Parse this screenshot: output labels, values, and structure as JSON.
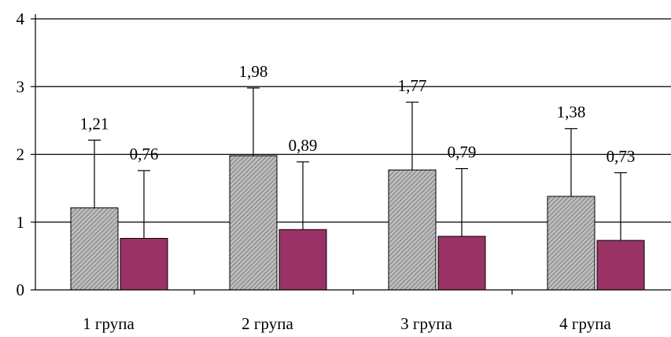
{
  "chart_data": {
    "type": "bar",
    "categories": [
      "1 група",
      "2 група",
      "3 група",
      "4 група"
    ],
    "series": [
      {
        "values": [
          1.21,
          1.98,
          1.77,
          1.38
        ],
        "value_labels": [
          "1,21",
          "1,98",
          "1,77",
          "1,38"
        ],
        "error_plus": [
          1.0,
          1.0,
          1.0,
          1.0
        ],
        "fill": "hatched-gray"
      },
      {
        "values": [
          0.76,
          0.89,
          0.79,
          0.73
        ],
        "value_labels": [
          "0,76",
          "0,89",
          "0,79",
          "0,73"
        ],
        "error_plus": [
          1.0,
          1.0,
          1.0,
          1.0
        ],
        "color": "#993366"
      }
    ],
    "ylim": [
      0,
      4
    ],
    "yticks": [
      "0",
      "1",
      "2",
      "3",
      "4"
    ],
    "grid": true,
    "legend": "none"
  }
}
